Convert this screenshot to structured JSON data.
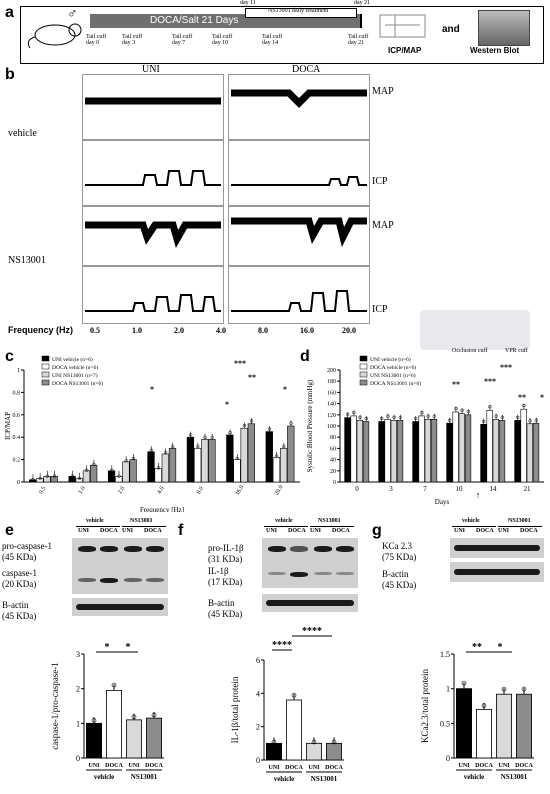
{
  "panel_a": {
    "letter": "a",
    "protocol": "DOCA/Salt 21 Days",
    "treatment_label": "NS13001 daily treatment",
    "day11": "day 11",
    "day21": "day 21",
    "sex_symbol": "♂",
    "tail_cuffs": [
      "Tail cuff day 0",
      "Tail cuff day 3",
      "Tail cuff day 7",
      "Tail cuff day 10",
      "Tail cuff day 14",
      "Tail cuff day 21"
    ],
    "icp_map": "ICP/MAP",
    "and": "and",
    "western": "Western Blot"
  },
  "panel_b": {
    "letter": "b",
    "col_uni": "UNI",
    "col_doca": "DOCA",
    "row_vehicle": "vehicle",
    "row_ns": "NS13001",
    "map": "MAP",
    "icp": "ICP",
    "freq_label": "Frequency (Hz)",
    "freqs": [
      "0.5",
      "1.0",
      "2.0",
      "4.0",
      "8.0",
      "16.0",
      "20.0"
    ],
    "occlusion": "Occlusion cuff",
    "vpr": "VPR cuff"
  },
  "panel_c": {
    "letter": "c",
    "ylabel": "ICP/MAP",
    "xlabel": "Frequency [Hz]",
    "legend": [
      "UNI vehicle (n=6)",
      "DOCA vehicle (n=6)",
      "UNI NS13001 (n=7)",
      "DOCA NS13001 (n=6)"
    ],
    "sig": [
      "*",
      "*",
      "***",
      "**",
      "*"
    ]
  },
  "panel_d": {
    "letter": "d",
    "ylabel": "Systolic Blood Pressure (mmHg)",
    "xlabel": "Days",
    "legend": [
      "UNI vehicle (n=6)",
      "DOCA vehicle (n=6)",
      "UNI NS13001 (n=6)",
      "DOCA NS13001 (n=6)"
    ],
    "sig": [
      "**",
      "***",
      "***",
      "**",
      "*"
    ],
    "arrow": "↑"
  },
  "panel_e": {
    "letter": "e",
    "vehicle": "vehicle",
    "ns": "NS13001",
    "lanes": [
      "UNI",
      "DOCA",
      "UNI",
      "DOCA"
    ],
    "label1": "pro-caspase-1",
    "label1_kda": "(45 KDa)",
    "label2": "caspase-1",
    "label2_kda": "(20 KDa)",
    "actin": "B-actin",
    "actin_kda": "(45 KDa)",
    "ylabel": "caspase-1/pro-caspase-1",
    "sig": [
      "*",
      "*"
    ]
  },
  "panel_f": {
    "letter": "f",
    "vehicle": "vehicle",
    "ns": "NS13001",
    "lanes": [
      "UNI",
      "DOCA",
      "UNI",
      "DOCA"
    ],
    "label1": "pro-IL-1β",
    "label1_kda": "(31 KDa)",
    "label2": "IL-1β",
    "label2_kda": "(17 KDa)",
    "actin": "B-actin",
    "actin_kda": "(45 KDa)",
    "ylabel": "IL-1β/total protein",
    "sig": [
      "****",
      "****"
    ]
  },
  "panel_g": {
    "letter": "g",
    "vehicle": "vehicle",
    "ns": "NS13001",
    "lanes": [
      "UNI",
      "DOCA",
      "UNI",
      "DOCA"
    ],
    "label1": "KCa 2.3",
    "label1_kda": "(75 KDa)",
    "actin": "B-actin",
    "actin_kda": "(45 KDa)",
    "ylabel": "KCa2.3/total protein",
    "sig": [
      "**",
      "*"
    ]
  },
  "chart_data": [
    {
      "id": "c",
      "type": "bar",
      "ylabel": "ICP/MAP",
      "xlabel": "Frequency [Hz]",
      "ylim": [
        0,
        1.0
      ],
      "yticks": [
        0,
        0.2,
        0.4,
        0.6,
        0.8,
        1.0
      ],
      "categories": [
        "0.5",
        "1.0",
        "2.0",
        "4.0",
        "8.0",
        "16.0",
        "20.0"
      ],
      "series": [
        {
          "name": "UNI vehicle (n=6)",
          "color": "#000000",
          "values": [
            0.02,
            0.05,
            0.1,
            0.27,
            0.4,
            0.42,
            0.45
          ]
        },
        {
          "name": "DOCA vehicle (n=6)",
          "color": "#ffffff",
          "values": [
            0.03,
            0.03,
            0.05,
            0.12,
            0.3,
            0.2,
            0.22
          ]
        },
        {
          "name": "UNI NS13001 (n=7)",
          "color": "#d9d9d9",
          "values": [
            0.05,
            0.1,
            0.18,
            0.25,
            0.38,
            0.48,
            0.3
          ]
        },
        {
          "name": "DOCA NS13001 (n=6)",
          "color": "#8c8c8c",
          "values": [
            0.05,
            0.15,
            0.2,
            0.3,
            0.38,
            0.52,
            0.5
          ]
        }
      ]
    },
    {
      "id": "d",
      "type": "bar",
      "ylabel": "Systolic Blood Pressure (mmHg)",
      "xlabel": "Days",
      "ylim": [
        0,
        200
      ],
      "yticks": [
        0,
        20,
        40,
        60,
        80,
        100,
        120,
        140,
        160,
        180,
        200
      ],
      "categories": [
        "0",
        "3",
        "7",
        "10",
        "14",
        "21"
      ],
      "series": [
        {
          "name": "UNI vehicle (n=6)",
          "color": "#000000",
          "values": [
            115,
            108,
            108,
            105,
            103,
            110
          ]
        },
        {
          "name": "DOCA vehicle (n=6)",
          "color": "#ffffff",
          "values": [
            118,
            112,
            118,
            125,
            128,
            130
          ]
        },
        {
          "name": "UNI NS13001 (n=6)",
          "color": "#d9d9d9",
          "values": [
            110,
            110,
            112,
            122,
            112,
            104
          ]
        },
        {
          "name": "DOCA NS13001 (n=6)",
          "color": "#8c8c8c",
          "values": [
            108,
            110,
            112,
            120,
            110,
            105
          ]
        }
      ]
    },
    {
      "id": "e",
      "type": "bar",
      "ylabel": "caspase-1/pro-caspase-1",
      "ylim": [
        0,
        3
      ],
      "yticks": [
        0,
        1,
        2,
        3
      ],
      "categories": [
        "UNI",
        "DOCA",
        "UNI",
        "DOCA"
      ],
      "groups": [
        "vehicle",
        "NS13001"
      ],
      "values": [
        1.0,
        1.95,
        1.1,
        1.15
      ],
      "colors": [
        "#000000",
        "#ffffff",
        "#d9d9d9",
        "#8c8c8c"
      ]
    },
    {
      "id": "f",
      "type": "bar",
      "ylabel": "IL-1β/total protein",
      "ylim": [
        0,
        6
      ],
      "yticks": [
        0,
        2,
        4,
        6
      ],
      "categories": [
        "UNI",
        "DOCA",
        "UNI",
        "DOCA"
      ],
      "groups": [
        "vehicle",
        "NS13001"
      ],
      "values": [
        1.0,
        3.6,
        1.0,
        1.0
      ],
      "colors": [
        "#000000",
        "#ffffff",
        "#d9d9d9",
        "#8c8c8c"
      ]
    },
    {
      "id": "g",
      "type": "bar",
      "ylabel": "KCa2.3/total protein",
      "ylim": [
        0,
        1.5
      ],
      "yticks": [
        0,
        0.5,
        1.0,
        1.5
      ],
      "categories": [
        "UNI",
        "DOCA",
        "UNI",
        "DOCA"
      ],
      "groups": [
        "vehicle",
        "NS13001"
      ],
      "values": [
        1.0,
        0.7,
        0.92,
        0.92
      ],
      "colors": [
        "#000000",
        "#ffffff",
        "#d9d9d9",
        "#8c8c8c"
      ]
    }
  ]
}
